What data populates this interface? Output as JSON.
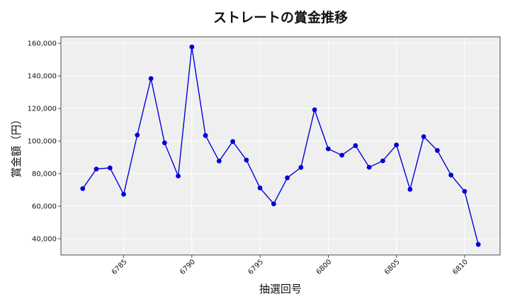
{
  "chart_data": {
    "type": "line",
    "title": "ストレートの賞金推移",
    "xlabel": "抽選回号",
    "ylabel": "賞金額（円）",
    "grid": true,
    "xlim": [
      6780.4,
      6812.6
    ],
    "ylim": [
      30000,
      164000
    ],
    "xticks": [
      6785,
      6790,
      6795,
      6800,
      6805,
      6810
    ],
    "yticks": [
      40000,
      60000,
      80000,
      100000,
      120000,
      140000,
      160000
    ],
    "ytick_labels": [
      "40,000",
      "60,000",
      "80,000",
      "100,000",
      "120,000",
      "140,000",
      "160,000"
    ],
    "series": [
      {
        "color": "#0000dd",
        "x": [
          6782,
          6783,
          6784,
          6785,
          6786,
          6787,
          6788,
          6789,
          6790,
          6791,
          6792,
          6793,
          6794,
          6795,
          6796,
          6797,
          6798,
          6799,
          6800,
          6801,
          6802,
          6803,
          6804,
          6805,
          6806,
          6807,
          6808,
          6809,
          6810,
          6811
        ],
        "y": [
          70800,
          82800,
          83500,
          67300,
          103700,
          138400,
          98900,
          78500,
          157800,
          103400,
          87700,
          99700,
          88300,
          71200,
          61400,
          77400,
          83800,
          119200,
          95200,
          91300,
          97200,
          83900,
          87800,
          97600,
          70300,
          102700,
          94200,
          79100,
          69100,
          36500
        ]
      }
    ]
  }
}
